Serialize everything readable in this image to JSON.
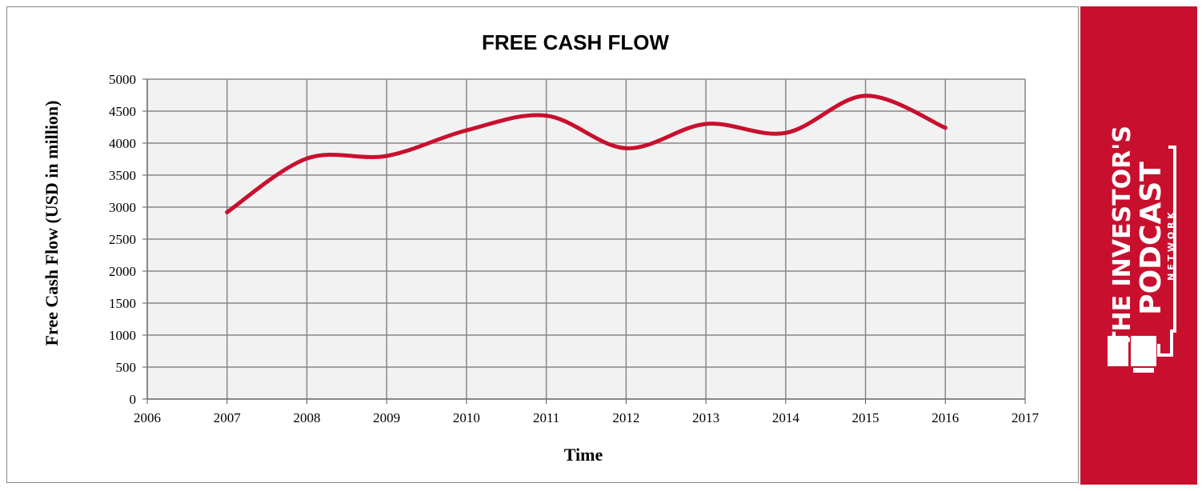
{
  "chart_data": {
    "type": "line",
    "title": "FREE CASH FLOW",
    "xlabel": "Time",
    "ylabel": "Free Cash Flow (USD in million)",
    "xlim": [
      2006,
      2017
    ],
    "ylim": [
      0,
      5000
    ],
    "x_ticks": [
      "2006",
      "2007",
      "2008",
      "2009",
      "2010",
      "2011",
      "2012",
      "2013",
      "2014",
      "2015",
      "2016",
      "2017"
    ],
    "y_ticks": [
      "0",
      "500",
      "1000",
      "1500",
      "2000",
      "2500",
      "3000",
      "3500",
      "4000",
      "4500",
      "5000"
    ],
    "grid": true,
    "series": [
      {
        "x": [
          2007,
          2008,
          2009,
          2010,
          2011,
          2012,
          2013,
          2014,
          2015,
          2016
        ],
        "values": [
          2920,
          3760,
          3800,
          4200,
          4430,
          3920,
          4300,
          4160,
          4740,
          4240
        ],
        "color": "#c8102e"
      }
    ]
  },
  "branding": {
    "line1": "THE INVESTOR'S",
    "line2": "PODCAST",
    "line3": "N E T W O R K",
    "background": "#c8102e"
  }
}
